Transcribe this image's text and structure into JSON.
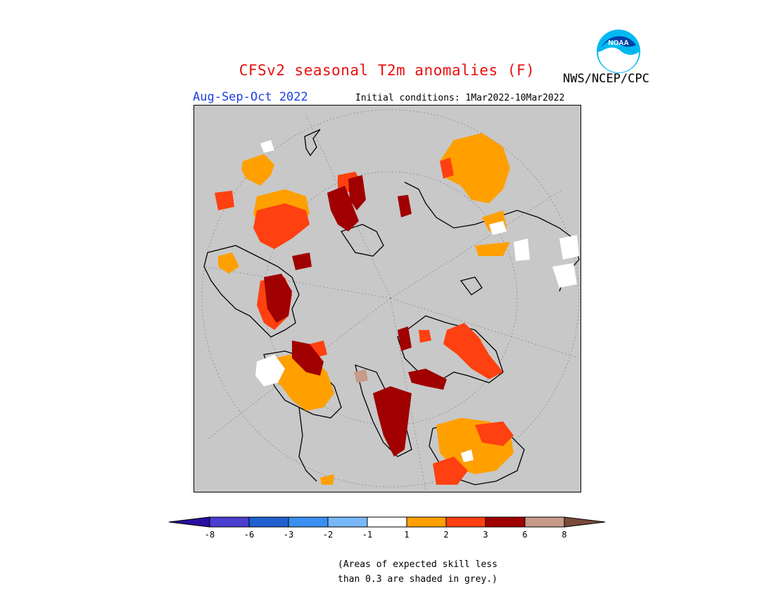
{
  "header": {
    "title": "CFSv2 seasonal T2m anomalies (F)",
    "season": "Aug-Sep-Oct 2022",
    "initial_conditions": "Initial conditions: 1Mar2022-10Mar2022",
    "agency": "NWS/NCEP/CPC",
    "logo_text": "NOAA"
  },
  "map": {
    "projection": "north-polar-stereographic",
    "background_color": "#c8c8c8",
    "grid": true
  },
  "legend": {
    "ticks": [
      "-8",
      "-6",
      "-3",
      "-2",
      "-1",
      "1",
      "2",
      "3",
      "6",
      "8"
    ],
    "colors": [
      "#2a0fa0",
      "#4a3ed0",
      "#2060d0",
      "#3a90f0",
      "#78b8f8",
      "#ffffff",
      "#ffa000",
      "#ff4010",
      "#a00000",
      "#c89a88",
      "#7a4a3a"
    ]
  },
  "footnote": {
    "line1": "(Areas of expected skill less",
    "line2": "than 0.3 are shaded in grey.)"
  }
}
